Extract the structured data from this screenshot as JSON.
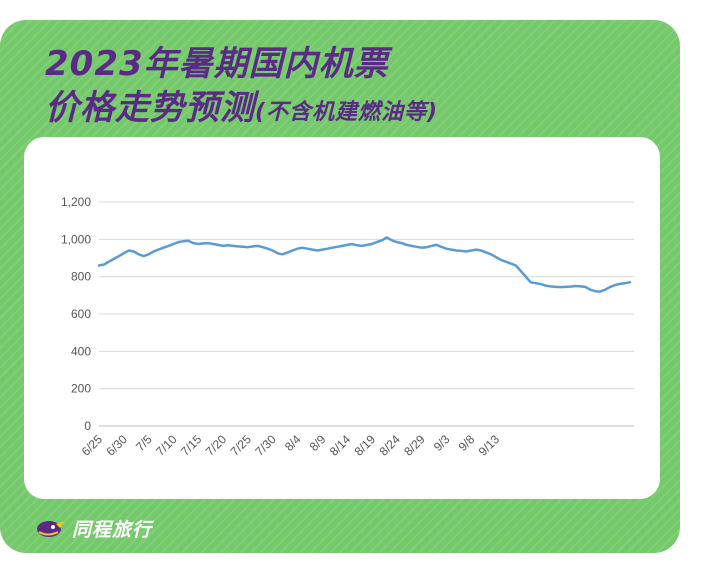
{
  "title_line1": "2023年暑期国内机票",
  "title_line2": "价格走势预测",
  "title_paren": "(不含机建燃油等)",
  "brand": {
    "name": "同程旅行",
    "logo_icon": "tongcheng-logo-icon"
  },
  "colors": {
    "background": "#74c96a",
    "title": "#5b2a86",
    "line": "#5b9bd5",
    "grid": "#d9d9d9"
  },
  "chart_data": {
    "type": "line",
    "title": "2023年暑期国内机票价格走势预测(不含机建燃油等)",
    "xlabel": "",
    "ylabel": "",
    "ylim": [
      0,
      1200
    ],
    "y_ticks": [
      "0",
      "200",
      "400",
      "600",
      "800",
      "1,000",
      "1,200"
    ],
    "x_tick_labels": [
      "6/25",
      "6/30",
      "7/5",
      "7/10",
      "7/15",
      "7/20",
      "7/25",
      "7/30",
      "8/4",
      "8/9",
      "8/14",
      "8/19",
      "8/24",
      "8/29",
      "9/3",
      "9/8",
      "9/13"
    ],
    "grid": true,
    "legend": "none",
    "series": [
      {
        "values": [
          860,
          865,
          880,
          895,
          910,
          925,
          940,
          935,
          920,
          910,
          920,
          935,
          945,
          955,
          965,
          975,
          985,
          990,
          992,
          980,
          975,
          978,
          980,
          975,
          970,
          965,
          968,
          965,
          962,
          960,
          958,
          962,
          965,
          958,
          950,
          940,
          925,
          920,
          930,
          940,
          950,
          955,
          950,
          945,
          940,
          945,
          950,
          955,
          960,
          965,
          970,
          975,
          968,
          965,
          970,
          975,
          985,
          995,
          1010,
          995,
          985,
          980,
          970,
          965,
          960,
          955,
          958,
          965,
          970,
          960,
          950,
          945,
          940,
          938,
          935,
          940,
          945,
          940,
          930,
          920,
          905,
          890,
          880,
          870,
          860,
          830,
          800,
          770,
          765,
          760,
          752,
          748,
          745,
          744,
          745,
          747,
          750,
          748,
          745,
          730,
          722,
          720,
          730,
          745,
          755,
          762,
          765,
          770
        ]
      }
    ]
  }
}
